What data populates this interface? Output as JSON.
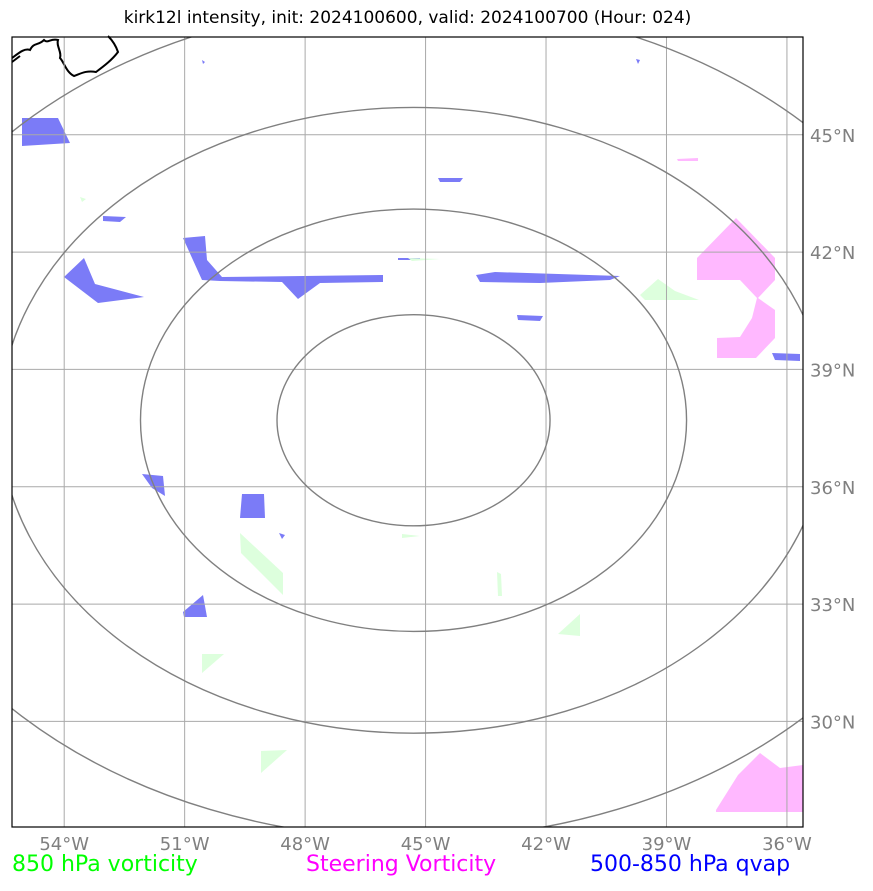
{
  "title": "kirk12l intensity, init: 2024100600, valid: 2024100700 (Hour: 024)",
  "map": {
    "lon_range": [
      -55.3,
      -35.6
    ],
    "lat_range": [
      27.3,
      47.5
    ],
    "lon_ticks": [
      {
        "value": -54,
        "label": "54°W"
      },
      {
        "value": -51,
        "label": "51°W"
      },
      {
        "value": -48,
        "label": "48°W"
      },
      {
        "value": -45,
        "label": "45°W"
      },
      {
        "value": -42,
        "label": "42°W"
      },
      {
        "value": -39,
        "label": "39°W"
      },
      {
        "value": -36,
        "label": "36°W"
      }
    ],
    "lat_ticks": [
      {
        "value": 45,
        "label": "45°N"
      },
      {
        "value": 42,
        "label": "42°N"
      },
      {
        "value": 39,
        "label": "39°N"
      },
      {
        "value": 36,
        "label": "36°N"
      },
      {
        "value": 33,
        "label": "33°N"
      },
      {
        "value": 30,
        "label": "30°N"
      }
    ],
    "storm_center": {
      "lon": -45.3,
      "lat": 37.7
    },
    "range_rings": [
      {
        "dlon": 3.4,
        "dlat": 2.7
      },
      {
        "dlon": 6.8,
        "dlat": 5.4
      },
      {
        "dlon": 10.3,
        "dlat": 8.0
      },
      {
        "dlon": 13.8,
        "dlat": 10.7
      }
    ],
    "colors": {
      "vort850": "#ddffdd",
      "steering": "#ffb8ff",
      "qvap": "#7b7bf7",
      "grid": "#a9a9a9",
      "rings": "#808080",
      "coast": "#000000"
    }
  },
  "legend": {
    "vort850": {
      "label": "850 hPa vorticity",
      "color": "#00ff00"
    },
    "steering": {
      "label": "Steering Vorticity",
      "color": "#ff00ff"
    },
    "qvap": {
      "label": "500-850 hPa qvap",
      "color": "#0000ff"
    }
  }
}
